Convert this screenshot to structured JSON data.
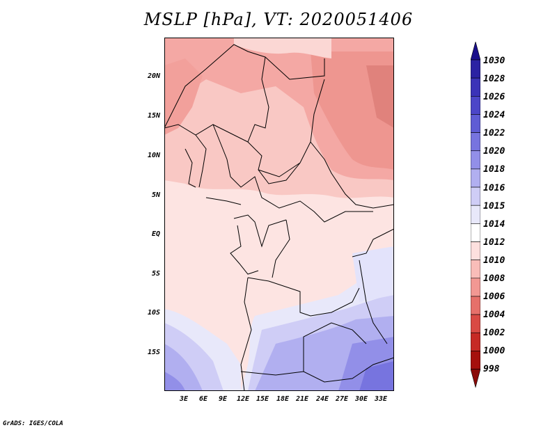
{
  "title": "MSLP [hPa], VT: 2020051406",
  "lat_labels": [
    "20N",
    "15N",
    "10N",
    "5N",
    "EQ",
    "5S",
    "10S",
    "15S"
  ],
  "lon_labels": [
    "3E",
    "6E",
    "9E",
    "12E",
    "15E",
    "18E",
    "21E",
    "24E",
    "27E",
    "30E",
    "33E"
  ],
  "colorbar": {
    "levels": [
      "1030",
      "1028",
      "1026",
      "1024",
      "1022",
      "1020",
      "1018",
      "1016",
      "1015",
      "1014",
      "1012",
      "1010",
      "1008",
      "1006",
      "1004",
      "1002",
      "1000",
      "998"
    ],
    "colors": [
      "#1a0f8a",
      "#2b22a3",
      "#3b33b8",
      "#4c46c8",
      "#5f5cd4",
      "#7774df",
      "#928fe8",
      "#b1aff0",
      "#cfcdf6",
      "#e8e8fa",
      "#ffffff",
      "#fde0de",
      "#f9bdb9",
      "#f29893",
      "#e6706a",
      "#d94a44",
      "#c62a25",
      "#a5100d",
      "#8a0a08"
    ]
  },
  "credit": "GrADS: IGES/COLA"
}
